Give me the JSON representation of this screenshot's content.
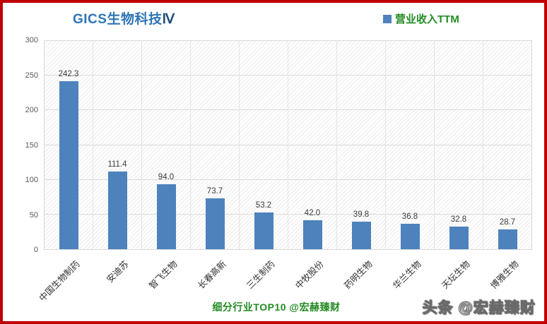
{
  "title": {
    "main": "GICS生物科技",
    "suffix": "Ⅳ"
  },
  "legend": {
    "label": "营业收入TTM",
    "marker_color": "#4d82bc"
  },
  "footer": {
    "caption": "细分行业TOP10 @宏赫臻财",
    "watermark": "头条 @宏赫臻财"
  },
  "colors": {
    "frame_border": "#c00000",
    "bar": "#4d82bc",
    "title_blue": "#2e75b6",
    "green_text": "#228B22",
    "gridline": "#d9d9d9"
  },
  "chart_data": {
    "type": "bar",
    "title": "GICS生物科技Ⅳ",
    "categories": [
      "中国生物制药",
      "安迪苏",
      "智飞生物",
      "长春高新",
      "三生制药",
      "中牧股份",
      "药明生物",
      "华兰生物",
      "天坛生物",
      "博雅生物"
    ],
    "values": [
      242.3,
      111.4,
      94.0,
      73.7,
      53.2,
      42.0,
      39.8,
      36.8,
      32.8,
      28.7
    ],
    "value_labels": [
      "242.3",
      "111.4",
      "94.0",
      "73.7",
      "53.2",
      "42.0",
      "39.8",
      "36.8",
      "32.8",
      "28.7"
    ],
    "series_name": "营业收入TTM",
    "xlabel": "",
    "ylabel": "",
    "ylim": [
      0,
      300
    ],
    "yticks": [
      0,
      50,
      100,
      150,
      200,
      250,
      300
    ],
    "grid": true,
    "hatch_background": true,
    "legend_position": "top-right"
  }
}
